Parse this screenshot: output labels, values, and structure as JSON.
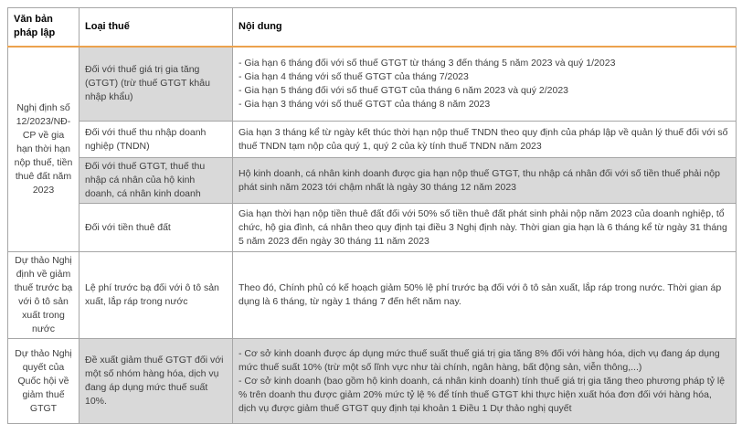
{
  "colors": {
    "header_rule_orange": "#ECA24D",
    "shaded_cell_gray": "#D9D9D9",
    "border_gray": "#A6A6A6",
    "header_text": "#000000",
    "body_text": "#3F3F3F"
  },
  "header": {
    "col1": "Văn bản pháp lập",
    "col2": "Loại thuế",
    "col3": "Nội dung"
  },
  "groups": [
    {
      "document": "Nghị định số 12/2023/NĐ-CP về gia hạn thời hạn nộp thuế, tiền thuê đất năm 2023"
    },
    {
      "document": "Dự thảo Nghị định về giảm thuế trước bạ với ô tô sản xuất trong nước"
    },
    {
      "document": "Dự thảo Nghị quyết của Quốc hội về giảm thuế GTGT"
    }
  ],
  "rows": [
    {
      "tax_type": "Đối với thuế giá trị gia tăng (GTGT) (trừ thuế GTGT khâu nhập khẩu)",
      "content_lines": [
        "- Gia hạn 6 tháng đối với số thuế GTGT từ tháng 3 đến tháng 5 năm 2023 và quý 1/2023",
        "- Gia hạn 4 tháng với số thuế GTGT của tháng 7/2023",
        "- Gia hạn 5 tháng đối với số thuế GTGT của tháng 6 năm 2023 và quý 2/2023",
        "- Gia hạn 3 tháng với số thuế GTGT của tháng 8 năm 2023"
      ]
    },
    {
      "tax_type": "Đối với thuế thu nhập doanh nghiệp (TNDN)",
      "content": "Gia hạn 3 tháng kể từ ngày kết thúc thời hạn nộp thuế TNDN theo quy định của pháp lập về quản lý thuế đối với số thuế TNDN tạm nộp của quý 1, quý 2 của kỳ tính thuế TNDN năm 2023"
    },
    {
      "tax_type": "Đối với thuế GTGT, thuế thu nhập cá nhân của hộ kinh doanh, cá nhân kinh doanh",
      "content": "Hộ kinh doanh, cá nhân kinh doanh được gia hạn nộp thuế GTGT, thu nhập cá nhân đối với số tiền thuế phải nộp phát sinh năm 2023 tới chậm nhất là ngày 30 tháng 12 năm 2023"
    },
    {
      "tax_type": "Đối với tiền thuê đất",
      "content": "Gia hạn thời hạn nộp tiền thuê đất đối với 50% số tiền thuê đất phát sinh phải nộp năm 2023 của doanh nghiệp, tổ chức, hộ gia đình, cá nhân theo quy định tại điều 3 Nghị định này. Thời gian gia hạn là 6 tháng kể từ ngày 31 tháng 5 năm 2023 đến ngày 30 tháng 11 năm 2023"
    },
    {
      "tax_type": "Lệ phí trước bạ đối với ô tô sản xuất, lắp ráp trong nước",
      "content": "Theo đó, Chính phủ có kế hoạch giảm 50% lệ phí trước bạ đối với ô tô sản xuất, lắp ráp trong nước. Thời gian áp dụng là 6 tháng, từ ngày 1 tháng 7 đến hết năm nay."
    },
    {
      "tax_type": "Đề xuất giảm thuế GTGT đối với một số nhóm hàng hóa, dịch vụ đang áp dụng mức thuế suất 10%.",
      "content_lines": [
        "- Cơ sở kinh doanh được áp dụng mức thuế suất thuế giá trị gia tăng 8% đối với hàng hóa, dịch vụ đang áp dụng mức thuế suất 10% (trừ một số lĩnh vực như tài chính, ngân hàng, bất động sản, viễn thông,...)",
        "- Cơ sở kinh doanh (bao gồm hộ kinh doanh, cá nhân kinh doanh) tính thuế giá trị gia tăng theo phương pháp tỷ lệ % trên doanh thu được giảm 20% mức tỷ lệ % để tính thuế GTGT khi thực hiện xuất hóa đơn đối với hàng hóa, dịch vụ được giảm thuế GTGT quy định tại khoản 1 Điều 1 Dự thảo nghị quyết"
      ]
    }
  ]
}
